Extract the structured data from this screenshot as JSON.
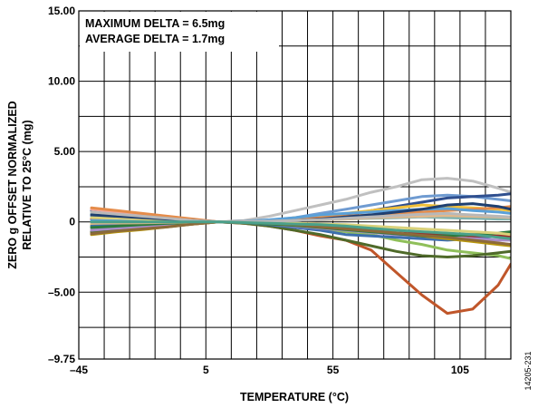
{
  "chart_data": {
    "type": "line",
    "title": "",
    "xlabel": "TEMPERATURE (°C)",
    "ylabel_lines": [
      "ZERO g OFFSET NORMALIZED",
      "RELATIVE TO 25°C (mg)"
    ],
    "xlim": [
      -45,
      125
    ],
    "ylim": [
      -9.75,
      15
    ],
    "x_tick_values": [
      -45,
      5,
      55,
      105
    ],
    "x_tick_labels": [
      "–45",
      "5",
      "55",
      "105"
    ],
    "y_tick_values": [
      15,
      10,
      5,
      0,
      -5,
      -9.75
    ],
    "y_tick_labels": [
      "15.00",
      "10.00",
      "5.00",
      "0",
      "–5.00",
      "–9.75"
    ],
    "grid": true,
    "x_grid_step": 10,
    "y_grid_step": 2.5,
    "annotations": [
      "MAXIMUM DELTA = 6.5mg",
      "AVERAGE DELTA = 1.7mg"
    ],
    "figure_id": "14205-231",
    "x": [
      -40,
      -30,
      -20,
      -10,
      0,
      10,
      20,
      30,
      40,
      50,
      60,
      70,
      80,
      90,
      100,
      110,
      120,
      125
    ],
    "series": [
      {
        "color": "#c0c0c0",
        "values": [
          -0.5,
          -0.4,
          -0.3,
          -0.2,
          -0.1,
          0,
          0.1,
          0.4,
          0.8,
          1.2,
          1.6,
          2.1,
          2.5,
          3.0,
          3.1,
          2.9,
          2.4,
          2.1
        ]
      },
      {
        "color": "#6f9bd1",
        "values": [
          0.4,
          0.3,
          0.2,
          0.1,
          0.05,
          0,
          0,
          0.1,
          0.3,
          0.6,
          0.9,
          1.2,
          1.5,
          1.8,
          1.9,
          1.8,
          1.6,
          1.5
        ]
      },
      {
        "color": "#2f4f8f",
        "values": [
          0.8,
          0.6,
          0.45,
          0.3,
          0.15,
          0,
          0,
          0.05,
          0.15,
          0.3,
          0.5,
          0.8,
          1.1,
          1.4,
          1.7,
          1.8,
          1.9,
          2.0
        ]
      },
      {
        "color": "#f2c13b",
        "values": [
          -0.2,
          -0.15,
          -0.1,
          -0.05,
          0,
          0,
          0,
          0.1,
          0.3,
          0.4,
          0.6,
          0.8,
          1.0,
          1.2,
          1.1,
          1.0,
          0.9,
          0.8
        ]
      },
      {
        "color": "#f4a6a0",
        "values": [
          0.9,
          0.7,
          0.5,
          0.3,
          0.15,
          0,
          -0.1,
          -0.2,
          -0.3,
          -0.4,
          -0.6,
          -0.7,
          -0.9,
          -1.0,
          -1.2,
          -1.3,
          -1.5,
          -1.6
        ]
      },
      {
        "color": "#8fbf5a",
        "values": [
          -0.3,
          -0.2,
          -0.15,
          -0.1,
          -0.05,
          0,
          0,
          -0.1,
          -0.3,
          -0.5,
          -0.7,
          -0.9,
          -1.3,
          -1.6,
          -2.0,
          -2.2,
          -2.4,
          -2.6
        ]
      },
      {
        "color": "#c0562a",
        "values": [
          -0.8,
          -0.6,
          -0.45,
          -0.3,
          -0.15,
          0,
          -0.1,
          -0.3,
          -0.6,
          -1.0,
          -1.3,
          -2.0,
          -3.6,
          -5.2,
          -6.5,
          -6.2,
          -4.5,
          -3.0
        ]
      },
      {
        "color": "#4f6a2a",
        "values": [
          -0.7,
          -0.5,
          -0.4,
          -0.25,
          -0.1,
          0,
          -0.1,
          -0.3,
          -0.6,
          -0.9,
          -1.3,
          -1.7,
          -2.1,
          -2.4,
          -2.5,
          -2.4,
          -2.2,
          -2.1
        ]
      },
      {
        "color": "#3d6fae",
        "values": [
          -0.3,
          -0.25,
          -0.2,
          -0.15,
          -0.05,
          0,
          -0.05,
          -0.2,
          -0.4,
          -0.6,
          -0.9,
          -1.0,
          -1.1,
          -1.2,
          -1.3,
          -1.2,
          -1.0,
          -0.9
        ]
      },
      {
        "color": "#e58c4a",
        "values": [
          1.0,
          0.8,
          0.6,
          0.4,
          0.2,
          0,
          0.05,
          0.1,
          0.2,
          0.3,
          0.4,
          0.5,
          0.6,
          0.7,
          0.8,
          0.9,
          1.0,
          1.1
        ]
      },
      {
        "color": "#7fb3b0",
        "values": [
          0.6,
          0.45,
          0.35,
          0.2,
          0.1,
          0,
          0,
          0.05,
          0.1,
          0.15,
          0.2,
          0.25,
          0.3,
          0.35,
          0.3,
          0.25,
          0.2,
          0.2
        ]
      },
      {
        "color": "#a98dc8",
        "values": [
          -0.6,
          -0.45,
          -0.35,
          -0.2,
          -0.1,
          0,
          -0.05,
          -0.15,
          -0.3,
          -0.45,
          -0.6,
          -0.75,
          -0.9,
          -1.0,
          -1.1,
          -1.2,
          -1.3,
          -1.3
        ]
      },
      {
        "color": "#b8960c",
        "values": [
          -0.9,
          -0.7,
          -0.55,
          -0.35,
          -0.15,
          0,
          -0.05,
          -0.1,
          -0.2,
          -0.3,
          -0.45,
          -0.6,
          -0.8,
          -1.0,
          -1.2,
          -1.4,
          -1.6,
          -1.7
        ]
      },
      {
        "color": "#9b2d2d",
        "values": [
          0.2,
          0.15,
          0.1,
          0.05,
          0,
          0,
          -0.05,
          -0.1,
          -0.2,
          -0.3,
          -0.4,
          -0.5,
          -0.6,
          -0.8,
          -0.9,
          -1.0,
          -1.0,
          -1.0
        ]
      },
      {
        "color": "#5aa0d8",
        "values": [
          0.1,
          0.08,
          0.06,
          0.04,
          0.02,
          0,
          0.05,
          0.15,
          0.3,
          0.5,
          0.6,
          0.7,
          0.8,
          0.9,
          0.95,
          0.8,
          0.7,
          0.6
        ]
      },
      {
        "color": "#2b7a3b",
        "values": [
          -0.4,
          -0.3,
          -0.2,
          -0.1,
          -0.05,
          0,
          -0.05,
          -0.15,
          -0.25,
          -0.4,
          -0.55,
          -0.7,
          -0.85,
          -1.0,
          -1.0,
          -0.9,
          -0.8,
          -0.7
        ]
      },
      {
        "color": "#d9d17a",
        "values": [
          0.3,
          0.25,
          0.2,
          0.1,
          0.05,
          0,
          0,
          -0.05,
          -0.1,
          -0.15,
          -0.2,
          -0.3,
          -0.4,
          -0.5,
          -0.6,
          -0.7,
          -0.8,
          -0.9
        ]
      },
      {
        "color": "#1f3f6f",
        "values": [
          0.5,
          0.4,
          0.3,
          0.2,
          0.1,
          0,
          0,
          0.05,
          0.1,
          0.2,
          0.35,
          0.5,
          0.7,
          0.9,
          1.2,
          1.3,
          1.1,
          0.9
        ]
      },
      {
        "color": "#e3b98a",
        "values": [
          -0.1,
          -0.08,
          -0.06,
          -0.04,
          -0.02,
          0,
          0.02,
          0.05,
          0.1,
          0.15,
          0.2,
          0.3,
          0.35,
          0.4,
          0.45,
          0.4,
          0.35,
          0.3
        ]
      },
      {
        "color": "#8c6a3a",
        "values": [
          -0.85,
          -0.65,
          -0.5,
          -0.35,
          -0.15,
          0,
          -0.05,
          -0.1,
          -0.2,
          -0.35,
          -0.5,
          -0.65,
          -0.8,
          -0.95,
          -1.1,
          -1.3,
          -1.5,
          -1.6
        ]
      },
      {
        "color": "#b8b8b8",
        "values": [
          0.7,
          0.55,
          0.4,
          0.25,
          0.1,
          0,
          0.02,
          0.05,
          0.1,
          0.15,
          0.25,
          0.35,
          0.45,
          0.55,
          0.6,
          0.5,
          0.4,
          0.35
        ]
      },
      {
        "color": "#4aa08a",
        "values": [
          0.0,
          0.0,
          0.0,
          0.0,
          0.0,
          0,
          -0.05,
          -0.1,
          -0.15,
          -0.2,
          -0.3,
          -0.45,
          -0.6,
          -0.7,
          -0.8,
          -0.9,
          -1.1,
          -1.2
        ]
      }
    ]
  }
}
